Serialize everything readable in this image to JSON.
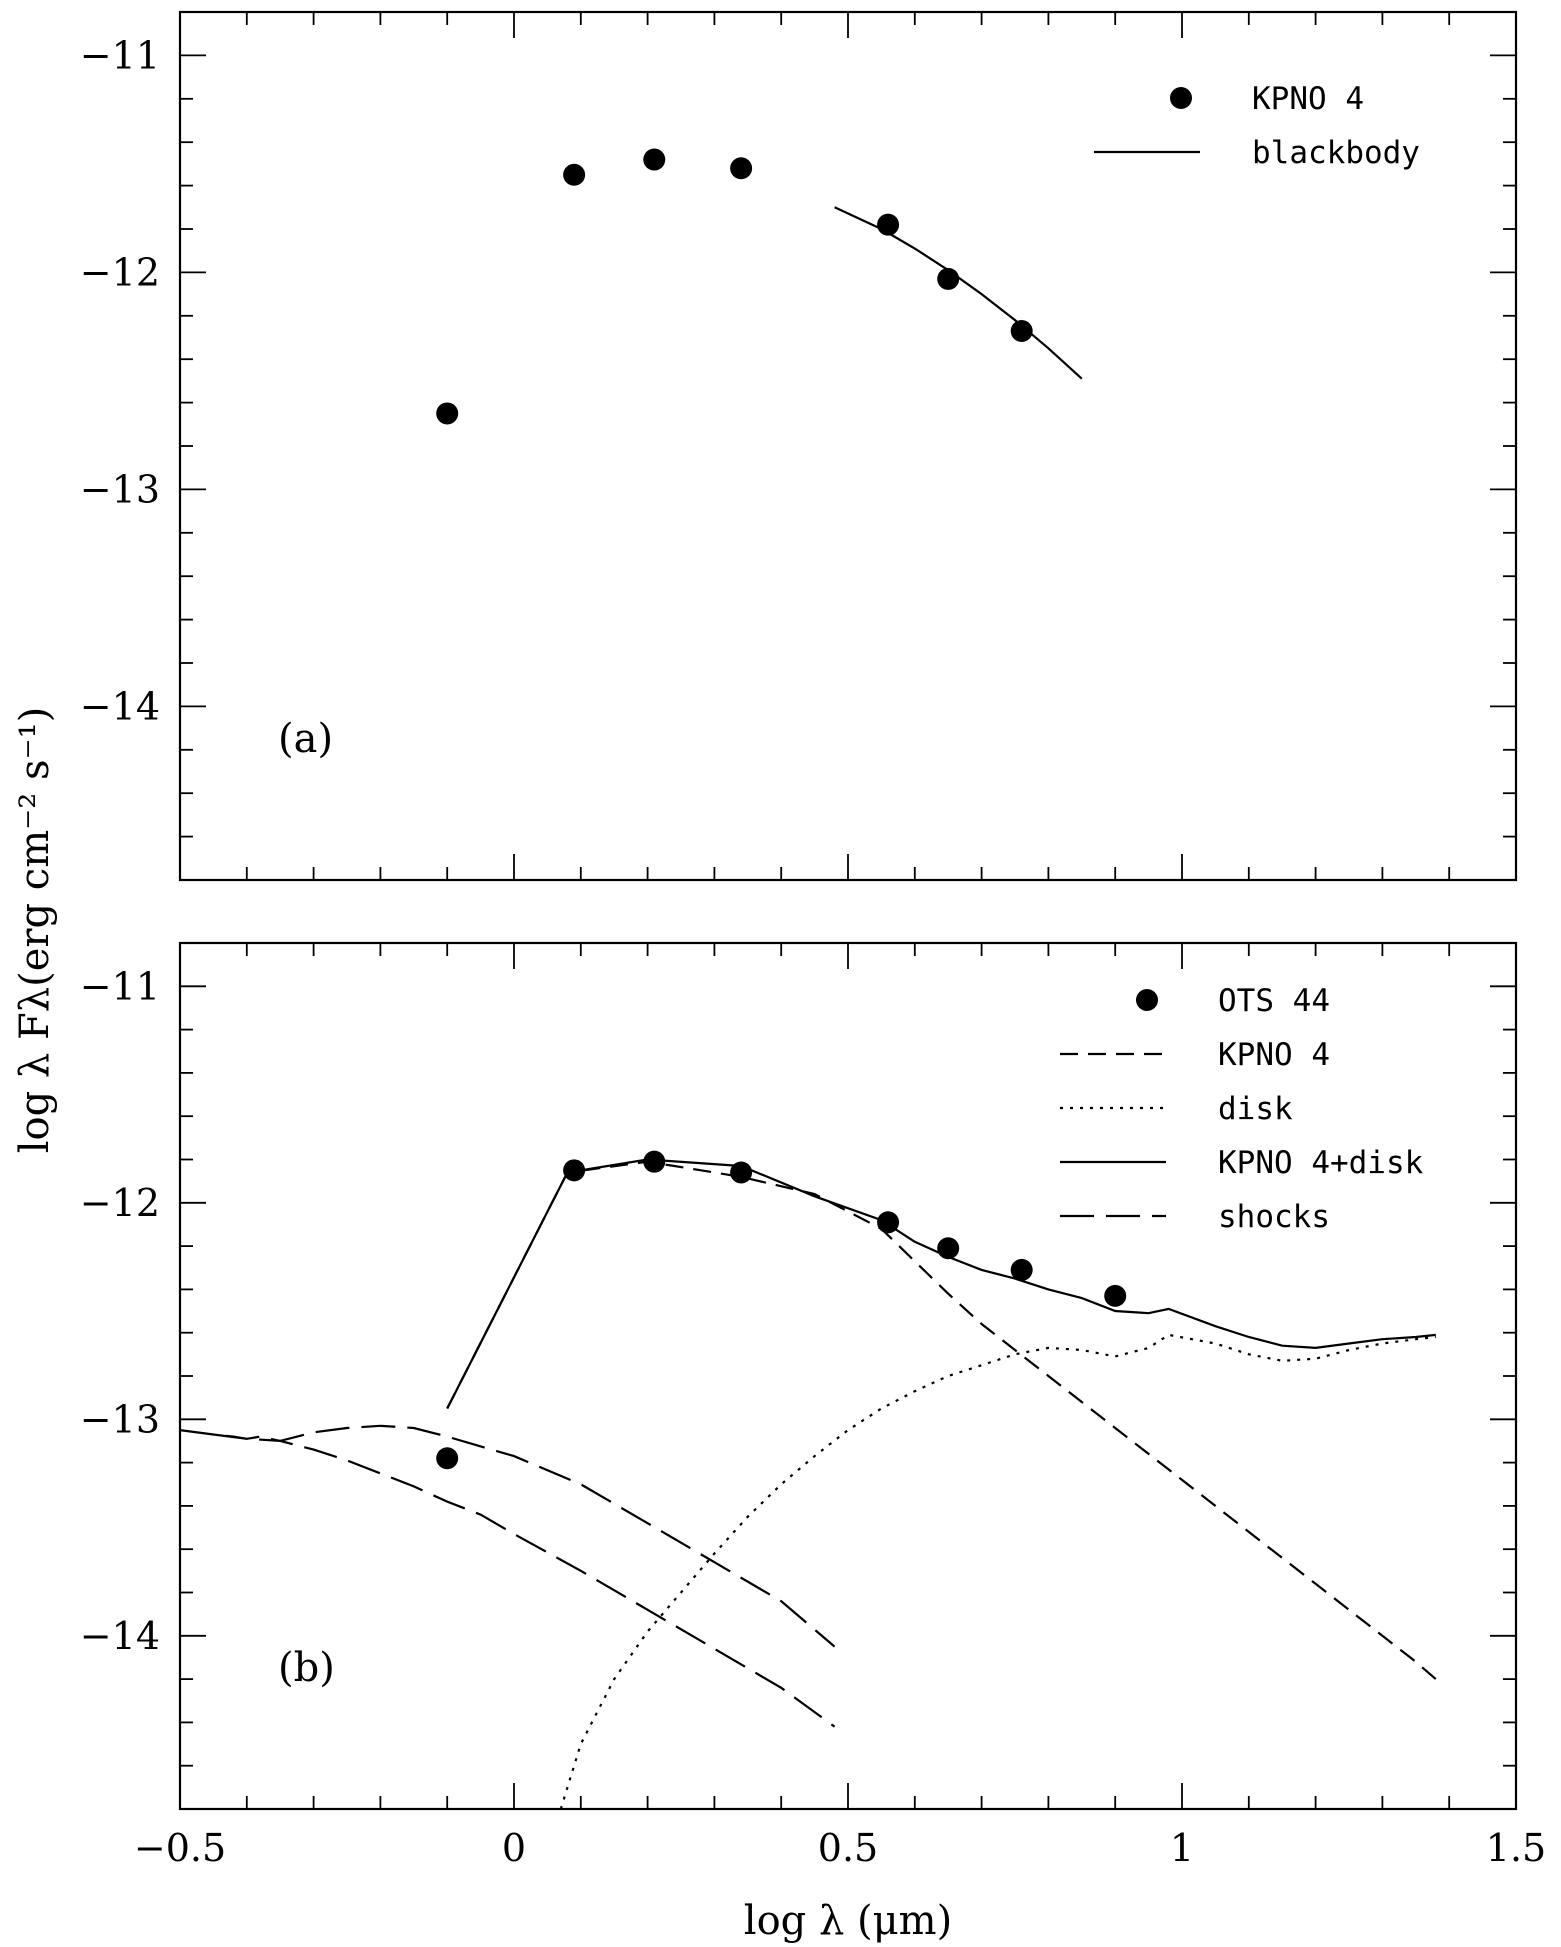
{
  "chart_data": [
    {
      "type": "scatter",
      "panel_label": "(a)",
      "xlim": [
        -0.5,
        1.5
      ],
      "ylim": [
        -14.8,
        -10.8
      ],
      "yticks": [
        -14,
        -13,
        -12,
        -11
      ],
      "ytick_labels": [
        "−14",
        "−13",
        "−12",
        "−11"
      ],
      "legend_position": "top-right",
      "series": [
        {
          "name": "KPNO 4",
          "kind": "points",
          "x": [
            -0.1,
            0.09,
            0.21,
            0.34,
            0.56,
            0.65,
            0.76
          ],
          "y": [
            -12.65,
            -11.55,
            -11.48,
            -11.52,
            -11.78,
            -12.03,
            -12.27
          ]
        },
        {
          "name": "blackbody",
          "kind": "line",
          "style": "solid",
          "x": [
            0.48,
            0.55,
            0.6,
            0.65,
            0.7,
            0.75,
            0.8,
            0.85
          ],
          "y": [
            -11.7,
            -11.8,
            -11.89,
            -11.99,
            -12.1,
            -12.22,
            -12.35,
            -12.49
          ]
        }
      ]
    },
    {
      "type": "line",
      "panel_label": "(b)",
      "xlim": [
        -0.5,
        1.5
      ],
      "ylim": [
        -14.8,
        -10.8
      ],
      "xticks": [
        -0.5,
        0,
        0.5,
        1,
        1.5
      ],
      "xtick_labels": [
        "−0.5",
        "0",
        "0.5",
        "1",
        "1.5"
      ],
      "yticks": [
        -14,
        -13,
        -12,
        -11
      ],
      "ytick_labels": [
        "−14",
        "−13",
        "−12",
        "−11"
      ],
      "xlabel": "log λ (μm)",
      "ylabel": "log λ Fλ(erg cm⁻² s⁻¹)",
      "legend_position": "top-right",
      "series": [
        {
          "name": "OTS 44",
          "kind": "points",
          "x": [
            -0.1,
            0.09,
            0.21,
            0.34,
            0.56,
            0.65,
            0.76,
            0.9
          ],
          "y": [
            -13.18,
            -11.85,
            -11.81,
            -11.86,
            -12.09,
            -12.21,
            -12.31,
            -12.43
          ]
        },
        {
          "name": "KPNO 4",
          "kind": "line",
          "style": "dashed",
          "x": [
            -0.1,
            0.08,
            0.2,
            0.34,
            0.45,
            0.55,
            0.6,
            0.65,
            0.7,
            0.75,
            0.8,
            0.85,
            0.9,
            0.95,
            1.0,
            1.05,
            1.1,
            1.15,
            1.2,
            1.25,
            1.3,
            1.35,
            1.38
          ],
          "y": [
            -12.95,
            -11.86,
            -11.81,
            -11.88,
            -11.96,
            -12.12,
            -12.27,
            -12.42,
            -12.56,
            -12.68,
            -12.8,
            -12.92,
            -13.04,
            -13.16,
            -13.28,
            -13.4,
            -13.52,
            -13.64,
            -13.76,
            -13.88,
            -14.0,
            -14.12,
            -14.2
          ]
        },
        {
          "name": "disk",
          "kind": "line",
          "style": "dotted",
          "x": [
            0.07,
            0.1,
            0.15,
            0.2,
            0.25,
            0.3,
            0.35,
            0.4,
            0.45,
            0.5,
            0.55,
            0.6,
            0.65,
            0.7,
            0.75,
            0.8,
            0.85,
            0.9,
            0.95,
            0.98,
            1.05,
            1.1,
            1.15,
            1.2,
            1.25,
            1.3,
            1.35,
            1.38
          ],
          "y": [
            -14.8,
            -14.5,
            -14.2,
            -13.98,
            -13.8,
            -13.62,
            -13.45,
            -13.3,
            -13.17,
            -13.05,
            -12.95,
            -12.87,
            -12.8,
            -12.75,
            -12.7,
            -12.67,
            -12.68,
            -12.71,
            -12.67,
            -12.61,
            -12.65,
            -12.7,
            -12.73,
            -12.72,
            -12.68,
            -12.65,
            -12.63,
            -12.62
          ]
        },
        {
          "name": "KPNO 4+disk",
          "kind": "line",
          "style": "solid",
          "x": [
            -0.1,
            0.08,
            0.2,
            0.34,
            0.45,
            0.55,
            0.6,
            0.65,
            0.7,
            0.75,
            0.8,
            0.85,
            0.9,
            0.95,
            0.98,
            1.05,
            1.1,
            1.15,
            1.2,
            1.25,
            1.3,
            1.35,
            1.38
          ],
          "y": [
            -12.95,
            -11.86,
            -11.8,
            -11.83,
            -11.97,
            -12.08,
            -12.18,
            -12.25,
            -12.31,
            -12.35,
            -12.4,
            -12.44,
            -12.5,
            -12.51,
            -12.49,
            -12.57,
            -12.62,
            -12.66,
            -12.67,
            -12.65,
            -12.63,
            -12.62,
            -12.61
          ]
        },
        {
          "name": "shocks",
          "kind": "line",
          "style": "long-dashed",
          "x": [
            -0.5,
            -0.45,
            -0.42,
            -0.4,
            -0.38,
            -0.35,
            -0.3,
            -0.25,
            -0.2,
            -0.15,
            -0.1,
            0.0,
            0.1,
            0.2,
            0.3,
            0.4,
            0.48
          ],
          "y": [
            -13.05,
            -13.07,
            -13.08,
            -13.09,
            -13.08,
            -13.1,
            -13.06,
            -13.04,
            -13.03,
            -13.04,
            -13.08,
            -13.17,
            -13.3,
            -13.48,
            -13.66,
            -13.84,
            -14.05
          ]
        },
        {
          "name": "",
          "kind": "line",
          "style": "long-dashed",
          "x": [
            -0.45,
            -0.4,
            -0.35,
            -0.3,
            -0.25,
            -0.2,
            -0.15,
            -0.1,
            -0.05,
            0.0,
            0.1,
            0.2,
            0.3,
            0.4,
            0.48
          ],
          "y": [
            -13.07,
            -13.09,
            -13.1,
            -13.14,
            -13.19,
            -13.25,
            -13.31,
            -13.38,
            -13.44,
            -13.53,
            -13.7,
            -13.88,
            -14.06,
            -14.24,
            -14.42
          ]
        }
      ]
    }
  ]
}
